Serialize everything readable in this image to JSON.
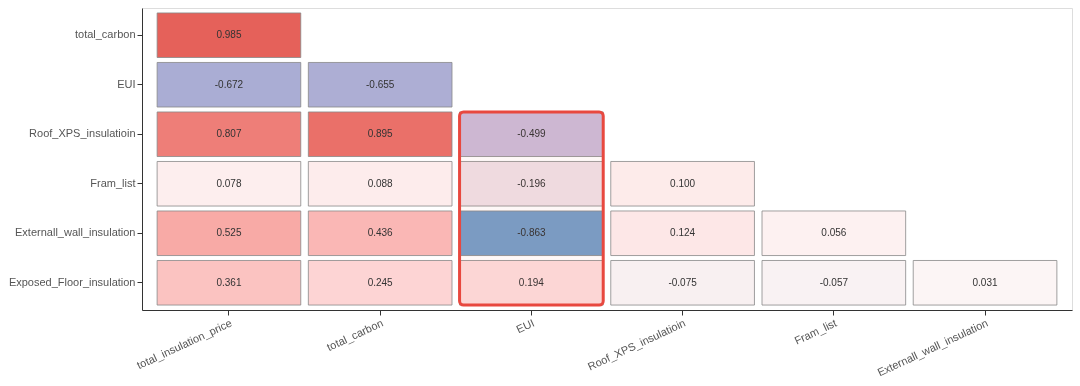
{
  "chart_data": {
    "type": "heatmap",
    "categories": [
      "total_insulation_price",
      "total_carbon",
      "EUI",
      "Roof_XPS_insulatioin",
      "Fram_list",
      "Externall_wall_insulation"
    ],
    "y_categories": [
      "total_carbon",
      "EUI",
      "Roof_XPS_insulatioin",
      "Fram_list",
      "Externall_wall_insulation",
      "Exposed_Floor_insulation"
    ],
    "cells": [
      [
        0.985,
        null,
        null,
        null,
        null,
        null
      ],
      [
        -0.672,
        -0.655,
        null,
        null,
        null,
        null
      ],
      [
        0.807,
        0.895,
        -0.499,
        null,
        null,
        null
      ],
      [
        0.078,
        0.088,
        -0.196,
        0.1,
        null,
        null
      ],
      [
        0.525,
        0.436,
        -0.863,
        0.124,
        0.056,
        null
      ],
      [
        0.361,
        0.245,
        0.194,
        -0.075,
        -0.057,
        0.031
      ]
    ],
    "cell_labels": [
      [
        "0.985",
        null,
        null,
        null,
        null,
        null
      ],
      [
        "-0.672",
        "-0.655",
        null,
        null,
        null,
        null
      ],
      [
        "0.807",
        "0.895",
        "-0.499",
        null,
        null,
        null
      ],
      [
        "0.078",
        "0.088",
        "-0.196",
        "0.100",
        null,
        null
      ],
      [
        "0.525",
        "0.436",
        "-0.863",
        "0.124",
        "0.056",
        null
      ],
      [
        "0.361",
        "0.245",
        "0.194",
        "-0.075",
        "-0.057",
        "0.031"
      ]
    ],
    "bands": [
      {
        "axis": "x",
        "from": "EUI",
        "to": "EUI",
        "color": "#e8483f"
      }
    ],
    "grid": false,
    "legend": false
  }
}
